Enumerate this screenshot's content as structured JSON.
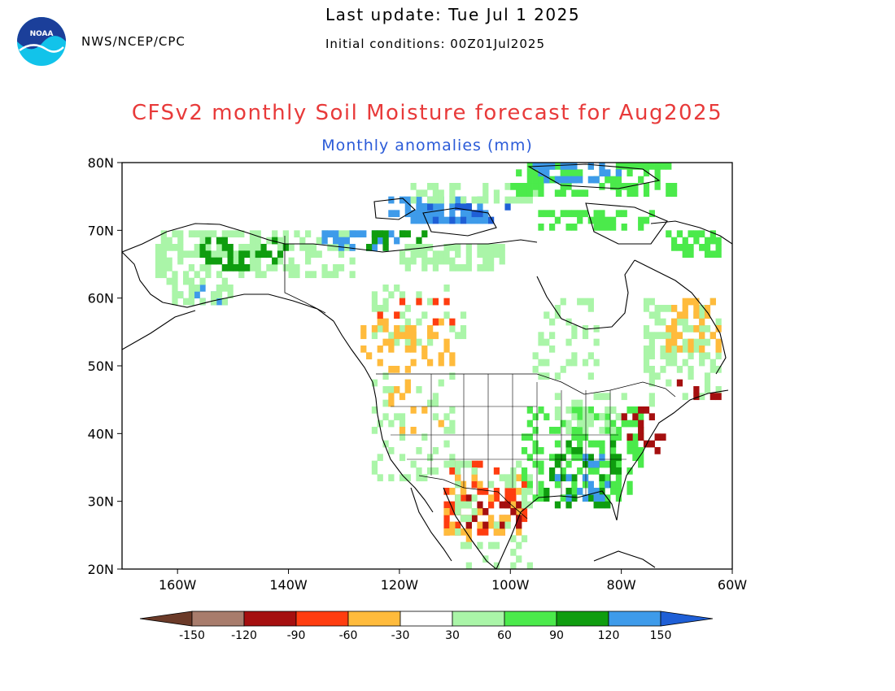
{
  "header": {
    "agency": "NWS/NCEP/CPC",
    "last_update": "Last update: Tue Jul 1 2025",
    "initial_conditions": "Initial conditions: 00Z01Jul2025",
    "logo_text": "NOAA"
  },
  "title": "CFSv2 monthly Soil Moisture forecast for Aug2025",
  "subtitle": "Monthly anomalies (mm)",
  "map": {
    "lon_range": [
      -170,
      -60
    ],
    "lat_range": [
      20,
      80
    ],
    "x_ticks": [
      {
        "lon": -160,
        "label": "160W"
      },
      {
        "lon": -140,
        "label": "140W"
      },
      {
        "lon": -120,
        "label": "120W"
      },
      {
        "lon": -100,
        "label": "100W"
      },
      {
        "lon": -80,
        "label": "80W"
      },
      {
        "lon": -60,
        "label": "60W"
      }
    ],
    "y_ticks": [
      {
        "lat": 80,
        "label": "80N"
      },
      {
        "lat": 70,
        "label": "70N"
      },
      {
        "lat": 60,
        "label": "60N"
      },
      {
        "lat": 50,
        "label": "50N"
      },
      {
        "lat": 40,
        "label": "40N"
      },
      {
        "lat": 30,
        "label": "30N"
      },
      {
        "lat": 20,
        "label": "20N"
      }
    ]
  },
  "colorbar": {
    "colors": [
      "#6b3a28",
      "#a87c6c",
      "#a50f0f",
      "#ff3d10",
      "#ffbb3c",
      "#ffffff",
      "#aaf5a8",
      "#4bea4b",
      "#0f9d0f",
      "#3e9bea",
      "#1f5fd6"
    ],
    "labels": [
      "-150",
      "-120",
      "-90",
      "-60",
      "-30",
      "30",
      "60",
      "90",
      "120",
      "150"
    ]
  },
  "chart_data": {
    "type": "heatmap",
    "title": "CFSv2 monthly Soil Moisture forecast for Aug2025",
    "subtitle": "Monthly anomalies (mm)",
    "xlim": [
      -170,
      -60
    ],
    "ylim": [
      20,
      80
    ],
    "cell_size_deg": 1,
    "category_colors": {
      "-4": "#6b3a28",
      "-3": "#a50f0f",
      "-2": "#ff3d10",
      "-1": "#ffbb3c",
      "1": "#aaf5a8",
      "2": "#4bea4b",
      "3": "#0f9d0f",
      "4": "#3e9bea",
      "5": "#1f5fd6"
    },
    "clusters": [
      {
        "lon": [
          -164,
          -128
        ],
        "lat": [
          63,
          70
        ],
        "cat": 1,
        "density": 0.55
      },
      {
        "lon": [
          -156,
          -140
        ],
        "lat": [
          64,
          69
        ],
        "cat": 3,
        "density": 0.3
      },
      {
        "lon": [
          -160,
          -150
        ],
        "lat": [
          59,
          62
        ],
        "cat": 4,
        "density": 0.4
      },
      {
        "lon": [
          -162,
          -150
        ],
        "lat": [
          59,
          63
        ],
        "cat": 1,
        "density": 0.5
      },
      {
        "lon": [
          -134,
          -118
        ],
        "lat": [
          67,
          70
        ],
        "cat": 4,
        "density": 0.45
      },
      {
        "lon": [
          -126,
          -115
        ],
        "lat": [
          67,
          70
        ],
        "cat": 3,
        "density": 0.35
      },
      {
        "lon": [
          -120,
          -101
        ],
        "lat": [
          64,
          68
        ],
        "cat": 1,
        "density": 0.8
      },
      {
        "lon": [
          -122,
          -104
        ],
        "lat": [
          71,
          75
        ],
        "cat": 4,
        "density": 0.55
      },
      {
        "lon": [
          -115,
          -100
        ],
        "lat": [
          71,
          74
        ],
        "cat": 5,
        "density": 0.35
      },
      {
        "lon": [
          -118,
          -95
        ],
        "lat": [
          74,
          77
        ],
        "cat": 1,
        "density": 0.4
      },
      {
        "lon": [
          -100,
          -70
        ],
        "lat": [
          75,
          80
        ],
        "cat": 2,
        "density": 0.45
      },
      {
        "lon": [
          -96,
          -80
        ],
        "lat": [
          77,
          80
        ],
        "cat": 4,
        "density": 0.4
      },
      {
        "lon": [
          -96,
          -74
        ],
        "lat": [
          70,
          73
        ],
        "cat": 2,
        "density": 0.5
      },
      {
        "lon": [
          -72,
          -62
        ],
        "lat": [
          66,
          70
        ],
        "cat": 2,
        "density": 0.55
      },
      {
        "lon": [
          -125,
          -108
        ],
        "lat": [
          53,
          62
        ],
        "cat": 1,
        "density": 0.25
      },
      {
        "lon": [
          -128,
          -110
        ],
        "lat": [
          50,
          57
        ],
        "cat": -1,
        "density": 0.3
      },
      {
        "lon": [
          -124,
          -110
        ],
        "lat": [
          56,
          60
        ],
        "cat": -2,
        "density": 0.15
      },
      {
        "lon": [
          -125,
          -110
        ],
        "lat": [
          33,
          49
        ],
        "cat": 1,
        "density": 0.25
      },
      {
        "lon": [
          -122,
          -112
        ],
        "lat": [
          40,
          50
        ],
        "cat": -1,
        "density": 0.2
      },
      {
        "lon": [
          -112,
          -97
        ],
        "lat": [
          25,
          36
        ],
        "cat": -2,
        "density": 0.25
      },
      {
        "lon": [
          -112,
          -98
        ],
        "lat": [
          24,
          34
        ],
        "cat": -1,
        "density": 0.25
      },
      {
        "lon": [
          -110,
          -98
        ],
        "lat": [
          26,
          32
        ],
        "cat": -3,
        "density": 0.15
      },
      {
        "lon": [
          -110,
          -96
        ],
        "lat": [
          20,
          36
        ],
        "cat": 1,
        "density": 0.22
      },
      {
        "lon": [
          -98,
          -76
        ],
        "lat": [
          30,
          44
        ],
        "cat": 2,
        "density": 0.45
      },
      {
        "lon": [
          -94,
          -80
        ],
        "lat": [
          29,
          39
        ],
        "cat": 3,
        "density": 0.3
      },
      {
        "lon": [
          -92,
          -82
        ],
        "lat": [
          30,
          37
        ],
        "cat": 4,
        "density": 0.2
      },
      {
        "lon": [
          -92,
          -78
        ],
        "lat": [
          40,
          46
        ],
        "cat": 1,
        "density": 0.35
      },
      {
        "lon": [
          -80,
          -72
        ],
        "lat": [
          37,
          44
        ],
        "cat": -3,
        "density": 0.2
      },
      {
        "lon": [
          -76,
          -62
        ],
        "lat": [
          44,
          60
        ],
        "cat": 1,
        "density": 0.35
      },
      {
        "lon": [
          -72,
          -62
        ],
        "lat": [
          52,
          60
        ],
        "cat": -1,
        "density": 0.3
      },
      {
        "lon": [
          -70,
          -62
        ],
        "lat": [
          45,
          48
        ],
        "cat": -3,
        "density": 0.25
      },
      {
        "lon": [
          -96,
          -84
        ],
        "lat": [
          48,
          60
        ],
        "cat": 1,
        "density": 0.2
      }
    ]
  }
}
